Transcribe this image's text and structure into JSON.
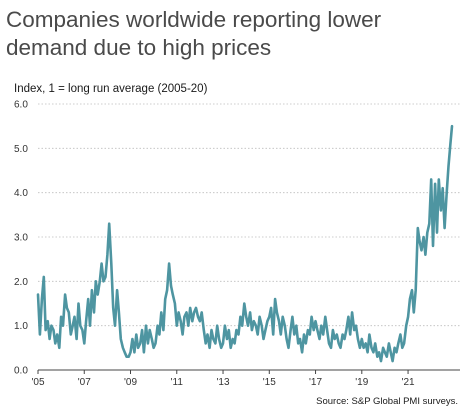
{
  "chart_data": {
    "type": "line",
    "title": "Companies worldwide reporting lower demand due to high prices",
    "ylabel": "Index, 1 = long run average (2005-20)",
    "xlabel": "",
    "source": "Source: S&P Global PMI surveys.",
    "ylim": [
      0,
      6
    ],
    "xlim": [
      2005,
      2022.9
    ],
    "yticks": [
      "0.0",
      "1.0",
      "2.0",
      "3.0",
      "4.0",
      "5.0",
      "6.0"
    ],
    "xticks": [
      "'05",
      "'07",
      "'09",
      "'11",
      "'13",
      "'15",
      "'17",
      "'19",
      "'21"
    ],
    "grid": "horizontal dotted",
    "colors": {
      "line": "#4e95a1",
      "grid": "#bdbdbd",
      "title": "#4a4a4a"
    },
    "series": [
      {
        "x": [
          2005.0,
          2005.08,
          2005.17,
          2005.25,
          2005.33,
          2005.42,
          2005.5,
          2005.58,
          2005.67,
          2005.75,
          2005.83,
          2005.92,
          2006.0,
          2006.08,
          2006.17,
          2006.25,
          2006.33,
          2006.42,
          2006.5,
          2006.58,
          2006.67,
          2006.75,
          2006.83,
          2006.92,
          2007.0,
          2007.08,
          2007.17,
          2007.25,
          2007.33,
          2007.42,
          2007.5,
          2007.58,
          2007.67,
          2007.75,
          2007.83,
          2007.92,
          2008.0,
          2008.08,
          2008.17,
          2008.25,
          2008.33,
          2008.42,
          2008.5,
          2008.58,
          2008.67,
          2008.75,
          2008.83,
          2008.92,
          2009.0,
          2009.08,
          2009.17,
          2009.25,
          2009.33,
          2009.42,
          2009.5,
          2009.58,
          2009.67,
          2009.75,
          2009.83,
          2009.92,
          2010.0,
          2010.08,
          2010.17,
          2010.25,
          2010.33,
          2010.42,
          2010.5,
          2010.58,
          2010.67,
          2010.75,
          2010.83,
          2010.92,
          2011.0,
          2011.08,
          2011.17,
          2011.25,
          2011.33,
          2011.42,
          2011.5,
          2011.58,
          2011.67,
          2011.75,
          2011.83,
          2011.92,
          2012.0,
          2012.08,
          2012.17,
          2012.25,
          2012.33,
          2012.42,
          2012.5,
          2012.58,
          2012.67,
          2012.75,
          2012.83,
          2012.92,
          2013.0,
          2013.08,
          2013.17,
          2013.25,
          2013.33,
          2013.42,
          2013.5,
          2013.58,
          2013.67,
          2013.75,
          2013.83,
          2013.92,
          2014.0,
          2014.08,
          2014.17,
          2014.25,
          2014.33,
          2014.42,
          2014.5,
          2014.58,
          2014.67,
          2014.75,
          2014.83,
          2014.92,
          2015.0,
          2015.08,
          2015.17,
          2015.25,
          2015.33,
          2015.42,
          2015.5,
          2015.58,
          2015.67,
          2015.75,
          2015.83,
          2015.92,
          2016.0,
          2016.08,
          2016.17,
          2016.25,
          2016.33,
          2016.42,
          2016.5,
          2016.58,
          2016.67,
          2016.75,
          2016.83,
          2016.92,
          2017.0,
          2017.08,
          2017.17,
          2017.25,
          2017.33,
          2017.42,
          2017.5,
          2017.58,
          2017.67,
          2017.75,
          2017.83,
          2017.92,
          2018.0,
          2018.08,
          2018.17,
          2018.25,
          2018.33,
          2018.42,
          2018.5,
          2018.58,
          2018.67,
          2018.75,
          2018.83,
          2018.92,
          2019.0,
          2019.08,
          2019.17,
          2019.25,
          2019.33,
          2019.42,
          2019.5,
          2019.58,
          2019.67,
          2019.75,
          2019.83,
          2019.92,
          2020.0,
          2020.08,
          2020.17,
          2020.25,
          2020.33,
          2020.42,
          2020.5,
          2020.58,
          2020.67,
          2020.75,
          2020.83,
          2020.92,
          2021.0,
          2021.08,
          2021.17,
          2021.25,
          2021.33,
          2021.42,
          2021.5,
          2021.58,
          2021.67,
          2021.75,
          2021.83,
          2021.92,
          2022.0,
          2022.08,
          2022.17,
          2022.25,
          2022.33,
          2022.42,
          2022.5,
          2022.58,
          2022.67,
          2022.75,
          2022.83,
          2022.9
        ],
        "values": [
          1.7,
          0.8,
          1.6,
          2.1,
          0.9,
          1.1,
          0.7,
          1.0,
          0.9,
          0.6,
          0.8,
          0.5,
          1.2,
          1.0,
          1.7,
          1.4,
          1.3,
          0.8,
          1.0,
          1.2,
          0.7,
          1.5,
          1.0,
          0.9,
          0.6,
          1.1,
          1.6,
          1.0,
          1.8,
          1.3,
          2.0,
          1.7,
          2.0,
          2.4,
          2.0,
          2.1,
          2.6,
          3.3,
          2.4,
          1.4,
          1.0,
          1.8,
          1.3,
          0.7,
          0.5,
          0.4,
          0.3,
          0.3,
          0.4,
          0.7,
          0.4,
          0.8,
          0.5,
          0.6,
          0.9,
          0.4,
          1.0,
          0.6,
          0.9,
          0.7,
          0.5,
          0.6,
          1.0,
          0.8,
          1.3,
          0.9,
          1.6,
          1.8,
          2.4,
          1.9,
          1.7,
          1.5,
          1.0,
          1.3,
          1.1,
          0.8,
          1.2,
          1.3,
          1.0,
          1.4,
          1.1,
          1.3,
          1.4,
          1.2,
          1.1,
          1.3,
          0.9,
          0.6,
          0.8,
          0.5,
          0.9,
          0.7,
          0.6,
          1.0,
          0.7,
          0.5,
          0.6,
          1.0,
          0.7,
          0.9,
          0.5,
          0.7,
          0.6,
          0.9,
          0.8,
          1.2,
          1.0,
          1.5,
          1.2,
          1.0,
          1.3,
          0.9,
          1.1,
          1.0,
          0.8,
          1.2,
          1.0,
          0.7,
          0.9,
          1.1,
          1.2,
          1.4,
          0.8,
          1.6,
          1.3,
          1.1,
          0.8,
          1.2,
          1.0,
          0.7,
          0.5,
          0.9,
          1.2,
          0.8,
          1.0,
          0.6,
          0.7,
          0.4,
          0.8,
          0.6,
          0.9,
          0.8,
          1.2,
          0.9,
          1.1,
          0.9,
          0.7,
          1.0,
          0.8,
          1.2,
          0.9,
          0.6,
          0.5,
          0.9,
          0.7,
          0.8,
          0.6,
          0.5,
          0.8,
          0.7,
          0.9,
          1.2,
          0.8,
          1.3,
          0.9,
          1.0,
          0.7,
          0.5,
          0.7,
          0.5,
          0.6,
          0.4,
          0.8,
          0.5,
          0.4,
          0.6,
          0.3,
          0.4,
          0.2,
          0.5,
          0.4,
          0.3,
          0.6,
          0.4,
          0.2,
          0.5,
          0.4,
          0.6,
          0.8,
          0.5,
          0.6,
          1.0,
          1.2,
          1.6,
          1.8,
          1.3,
          1.8,
          3.2,
          2.9,
          2.7,
          3.0,
          2.6,
          3.1,
          3.3,
          4.3,
          2.8,
          4.2,
          3.1,
          4.3,
          3.6,
          4.1,
          3.2,
          4.0,
          4.6,
          5.1,
          5.5
        ]
      }
    ]
  }
}
